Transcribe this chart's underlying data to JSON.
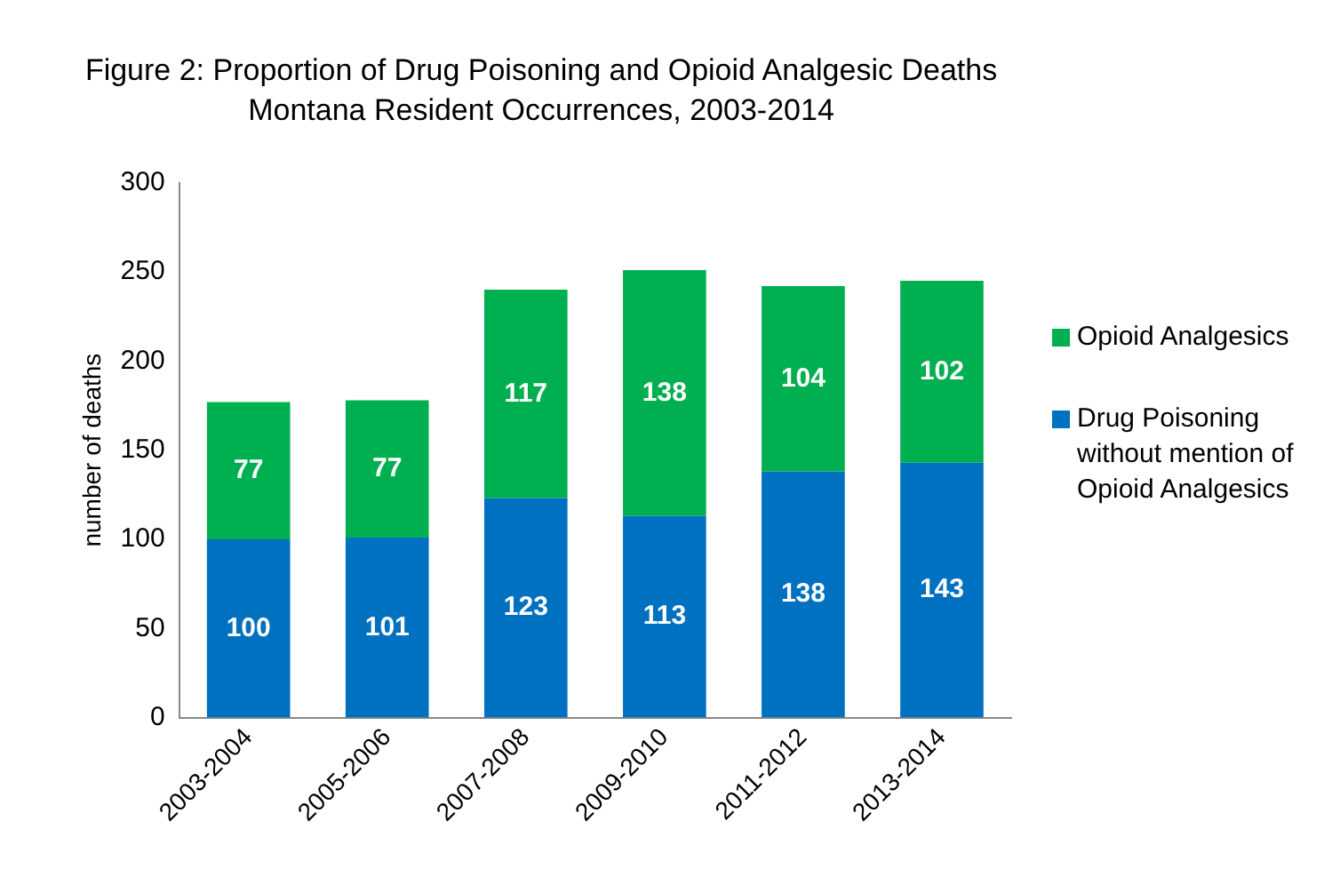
{
  "chart_data": {
    "type": "bar",
    "title": "Figure 2: Proportion of Drug Poisoning and Opioid Analgesic Deaths",
    "subtitle": "Montana Resident Occurrences, 2003-2014",
    "ylabel": "number of deaths",
    "categories": [
      "2003-2004",
      "2005-2006",
      "2007-2008",
      "2009-2010",
      "2011-2012",
      "2013-2014"
    ],
    "series": [
      {
        "name": "Drug Poisoning without mention of Opioid Analgesics",
        "color": "#0070c0",
        "values": [
          100,
          101,
          123,
          113,
          138,
          143
        ]
      },
      {
        "name": "Opioid Analgesics",
        "color": "#00b050",
        "values": [
          77,
          77,
          117,
          138,
          104,
          102
        ]
      }
    ],
    "stacked": true,
    "data_labels": true,
    "ylim": [
      0,
      300
    ],
    "yticks": [
      0,
      50,
      100,
      150,
      200,
      250,
      300
    ],
    "grid": false,
    "legend": "right"
  }
}
